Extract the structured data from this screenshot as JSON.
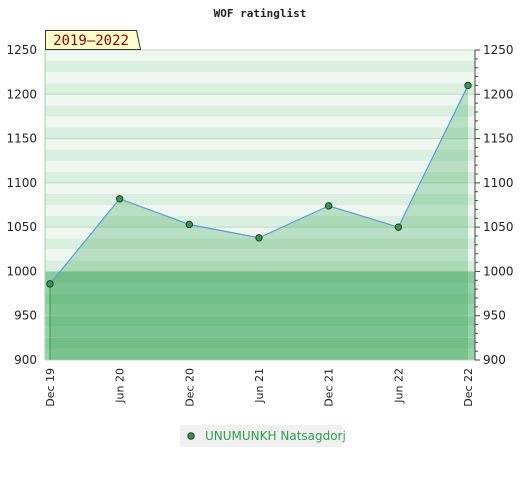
{
  "chart_data": {
    "type": "area",
    "title": "WOF ratinglist",
    "period_label": "2019–2022",
    "x_categories": [
      "Dec 19",
      "Jun 20",
      "Dec 20",
      "Jun 21",
      "Dec 21",
      "Jun 22",
      "Dec 22"
    ],
    "y_ticks": [
      900,
      950,
      1000,
      1050,
      1100,
      1150,
      1200,
      1250
    ],
    "ylim": [
      900,
      1250
    ],
    "series": [
      {
        "name": "UNUMUNKH Natsagdorj",
        "color": "#2e9e4a",
        "points": [
          {
            "x": "Dec 19",
            "y": 986
          },
          {
            "x": "Jun 20",
            "y": 1082
          },
          {
            "x": "Dec 20",
            "y": 1053
          },
          {
            "x": "Jun 21",
            "y": 1038
          },
          {
            "x": "Dec 21",
            "y": 1074
          },
          {
            "x": "Jun 22",
            "y": 1050
          },
          {
            "x": "Dec 22",
            "y": 1210
          }
        ]
      }
    ],
    "grid": true,
    "legend_position": "bottom"
  }
}
